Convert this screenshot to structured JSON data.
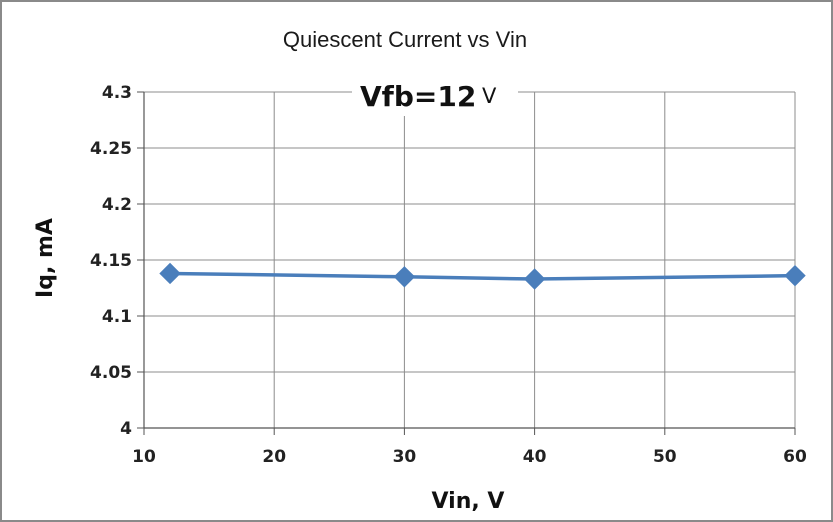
{
  "chart_data": {
    "type": "line",
    "title": "Quiescent Current vs Vin",
    "subtitle_main": "Vfb=12",
    "subtitle_unit": "V",
    "xlabel": "Vin, V",
    "ylabel": "Iq, mA",
    "xlim": [
      10,
      60
    ],
    "ylim": [
      4,
      4.3
    ],
    "x_ticks": [
      "10",
      "20",
      "30",
      "40",
      "50",
      "60"
    ],
    "y_ticks": [
      "4",
      "4.05",
      "4.1",
      "4.15",
      "4.2",
      "4.25",
      "4.3"
    ],
    "grid": true,
    "series": [
      {
        "x": [
          12,
          30,
          40,
          60
        ],
        "values": [
          4.138,
          4.135,
          4.133,
          4.136
        ],
        "color": "#4a7ebb",
        "marker": "diamond"
      }
    ]
  }
}
